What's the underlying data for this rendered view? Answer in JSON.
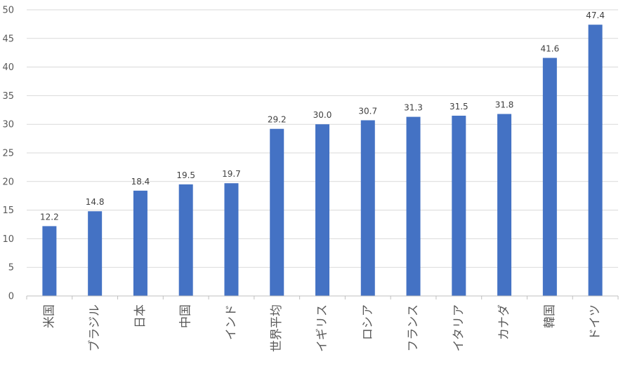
{
  "chart_data": {
    "type": "bar",
    "categories": [
      "米国",
      "ブラジル",
      "日本",
      "中国",
      "インド",
      "世界平均",
      "イギリス",
      "ロシア",
      "フランス",
      "イタリア",
      "カナダ",
      "韓国",
      "ドイツ"
    ],
    "values": [
      12.2,
      14.8,
      18.4,
      19.5,
      19.7,
      29.2,
      30.0,
      30.7,
      31.3,
      31.5,
      31.8,
      41.6,
      47.4
    ],
    "data_labels": [
      "12.2",
      "14.8",
      "18.4",
      "19.5",
      "19.7",
      "29.2",
      "30.0",
      "30.7",
      "31.3",
      "31.5",
      "31.8",
      "41.6",
      "47.4"
    ],
    "y_ticks": [
      0,
      5,
      10,
      15,
      20,
      25,
      30,
      35,
      40,
      45,
      50
    ],
    "ylim": [
      0,
      50
    ],
    "grid": true,
    "bar_color": "#4472c4",
    "title": "",
    "xlabel": "",
    "ylabel": ""
  }
}
